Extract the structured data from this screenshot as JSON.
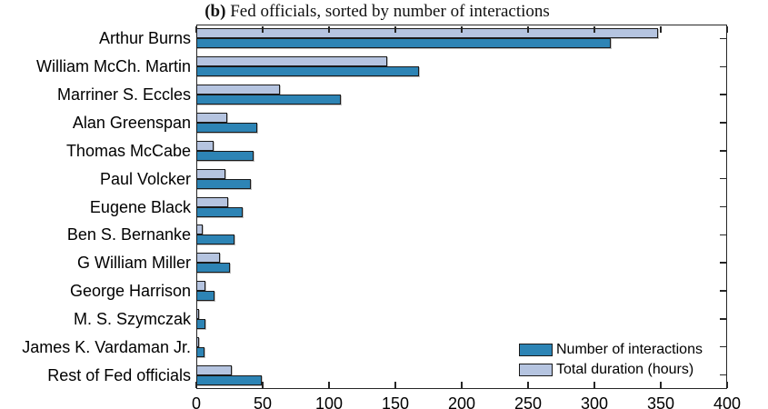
{
  "title": {
    "prefix": "(b)",
    "text": " Fed officials, sorted by number of interactions"
  },
  "chart_data": {
    "type": "bar",
    "orientation": "horizontal",
    "title": "(b) Fed officials, sorted by number of interactions",
    "categories": [
      "Arthur Burns",
      "William McCh. Martin",
      "Marriner S. Eccles",
      "Alan Greenspan",
      "Thomas McCabe",
      "Paul Volcker",
      "Eugene Black",
      "Ben S. Bernanke",
      "G William Miller",
      "George Harrison",
      "M. S. Szymczak",
      "James K. Vardaman Jr.",
      "Rest of Fed officials"
    ],
    "series": [
      {
        "name": "Number of interactions",
        "color": "#2d84b5",
        "values": [
          312,
          168,
          109,
          46,
          43,
          41,
          35,
          29,
          25,
          14,
          7,
          6,
          49
        ]
      },
      {
        "name": "Total duration (hours)",
        "color": "#b5c4e0",
        "values": [
          348,
          144,
          63,
          23,
          13,
          22,
          24,
          5,
          18,
          7,
          2,
          2,
          27
        ]
      }
    ],
    "xlabel": "",
    "ylabel": "",
    "xlim": [
      0,
      400
    ],
    "x_ticks": [
      0,
      50,
      100,
      150,
      200,
      250,
      300,
      350,
      400
    ],
    "grid": false,
    "legend_position": "bottom-right",
    "bar_border_color": "#1a1a1a",
    "axis_color": "#262626",
    "text_color": "#111111",
    "background": "#ffffff"
  }
}
